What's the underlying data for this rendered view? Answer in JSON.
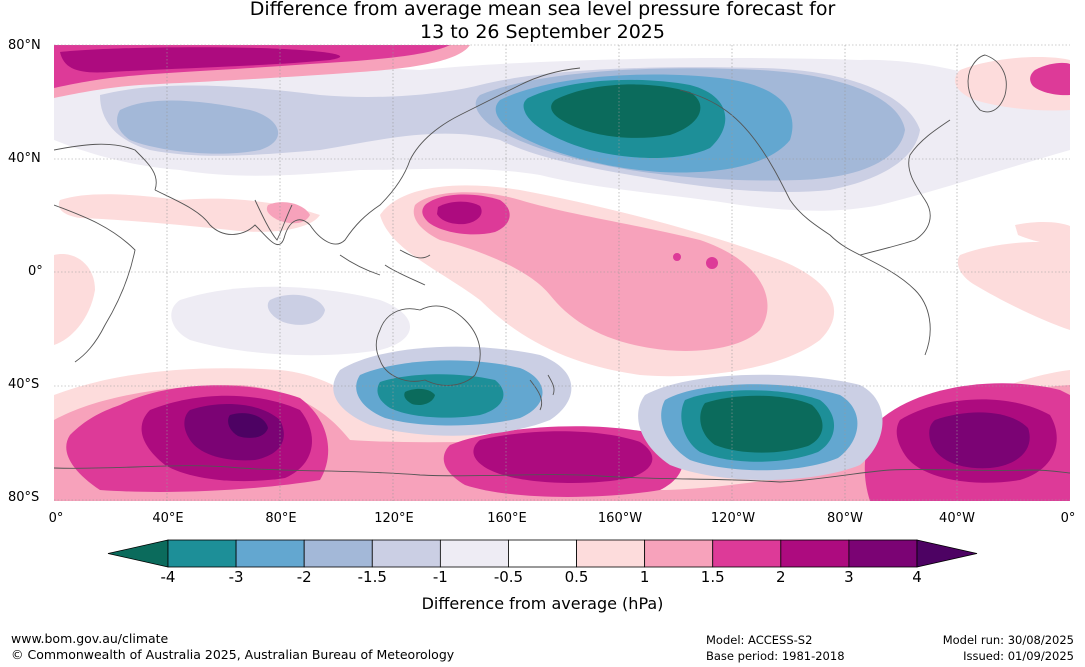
{
  "title_line1": "Difference from average mean sea level pressure forecast for",
  "title_line2": "13 to 26 September 2025",
  "lat_labels": [
    "80°N",
    "40°N",
    "0°",
    "40°S",
    "80°S"
  ],
  "lon_labels": [
    "0°",
    "40°E",
    "80°E",
    "120°E",
    "160°E",
    "160°W",
    "120°W",
    "80°W",
    "40°W",
    "0°"
  ],
  "colorbar": {
    "title": "Difference from average (hPa)",
    "tick_labels": [
      "-4",
      "-3",
      "-2",
      "-1.5",
      "-1",
      "-0.5",
      "0.5",
      "1",
      "1.5",
      "2",
      "3",
      "4"
    ],
    "colors": [
      "#0b6b5c",
      "#1d8f98",
      "#63a7d0",
      "#a3b8d8",
      "#cbcfe4",
      "#eeecf4",
      "#ffffff",
      "#fddcdc",
      "#f7a2bb",
      "#dd3a98",
      "#ad0b7f",
      "#7b0374",
      "#4d0263"
    ]
  },
  "footer": {
    "url": "www.bom.gov.au/climate",
    "copyright": "© Commonwealth of Australia 2025, Australian Bureau of Meteorology",
    "model": "Model: ACCESS-S2",
    "base_period": "Base period: 1981-2018",
    "model_run": "Model run: 30/08/2025",
    "issued": "Issued: 01/09/2025"
  }
}
